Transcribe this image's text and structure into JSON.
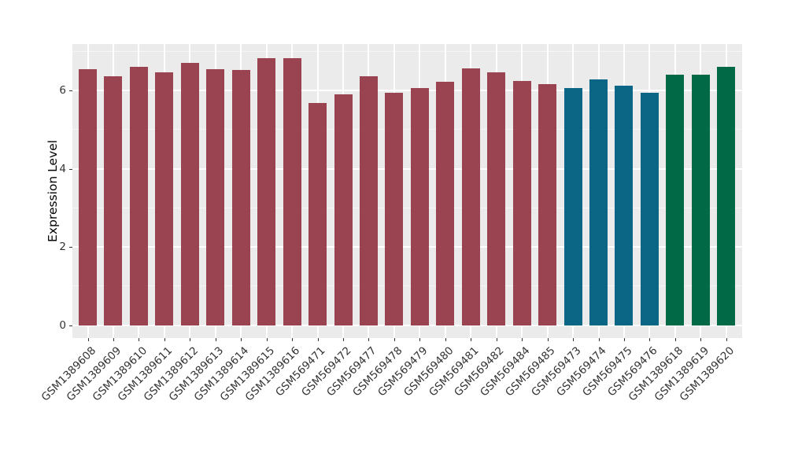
{
  "chart_data": {
    "type": "bar",
    "title": "",
    "xlabel": "",
    "ylabel": "Expression Level",
    "legend_position": "none",
    "grid": true,
    "panel_background_color": "#EBEBEB",
    "gridline_color": "#FFFFFF",
    "axis_text_color": "#333333",
    "y_ticks": [
      0,
      2,
      4,
      6
    ],
    "y_minor_ticks": [
      1,
      3,
      5,
      7
    ],
    "ylim": [
      -0.33,
      7.19
    ],
    "x_label_angle_deg": 45,
    "group_colors": {
      "maroon": "#9A4452",
      "teal": "#0B6686",
      "green": "#016946"
    },
    "bars": [
      {
        "label": "GSM1389608",
        "value": 6.55,
        "group": "maroon"
      },
      {
        "label": "GSM1389609",
        "value": 6.37,
        "group": "maroon"
      },
      {
        "label": "GSM1389610",
        "value": 6.6,
        "group": "maroon"
      },
      {
        "label": "GSM1389611",
        "value": 6.47,
        "group": "maroon"
      },
      {
        "label": "GSM1389612",
        "value": 6.71,
        "group": "maroon"
      },
      {
        "label": "GSM1389613",
        "value": 6.55,
        "group": "maroon"
      },
      {
        "label": "GSM1389614",
        "value": 6.53,
        "group": "maroon"
      },
      {
        "label": "GSM1389615",
        "value": 6.83,
        "group": "maroon"
      },
      {
        "label": "GSM1389616",
        "value": 6.83,
        "group": "maroon"
      },
      {
        "label": "GSM569471",
        "value": 5.67,
        "group": "maroon"
      },
      {
        "label": "GSM569472",
        "value": 5.9,
        "group": "maroon"
      },
      {
        "label": "GSM569477",
        "value": 6.36,
        "group": "maroon"
      },
      {
        "label": "GSM569478",
        "value": 5.95,
        "group": "maroon"
      },
      {
        "label": "GSM569479",
        "value": 6.07,
        "group": "maroon"
      },
      {
        "label": "GSM569480",
        "value": 6.22,
        "group": "maroon"
      },
      {
        "label": "GSM569481",
        "value": 6.56,
        "group": "maroon"
      },
      {
        "label": "GSM569482",
        "value": 6.46,
        "group": "maroon"
      },
      {
        "label": "GSM569484",
        "value": 6.24,
        "group": "maroon"
      },
      {
        "label": "GSM569485",
        "value": 6.16,
        "group": "maroon"
      },
      {
        "label": "GSM569473",
        "value": 6.06,
        "group": "teal"
      },
      {
        "label": "GSM569474",
        "value": 6.28,
        "group": "teal"
      },
      {
        "label": "GSM569475",
        "value": 6.12,
        "group": "teal"
      },
      {
        "label": "GSM569476",
        "value": 5.93,
        "group": "teal"
      },
      {
        "label": "GSM1389618",
        "value": 6.41,
        "group": "green"
      },
      {
        "label": "GSM1389619",
        "value": 6.4,
        "group": "green"
      },
      {
        "label": "GSM1389620",
        "value": 6.6,
        "group": "green"
      }
    ]
  }
}
